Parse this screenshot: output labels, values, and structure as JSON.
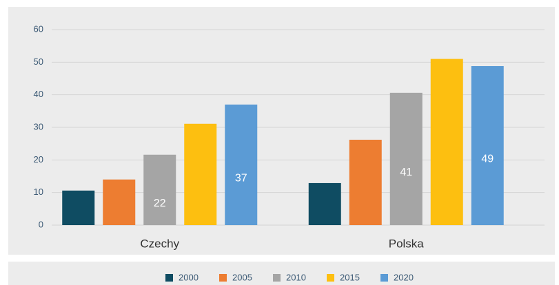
{
  "chart_data": {
    "type": "bar",
    "categories": [
      "Czechy",
      "Polska"
    ],
    "series": [
      {
        "name": "2000",
        "color": "#0f4c62",
        "values": [
          10.6,
          12.9
        ]
      },
      {
        "name": "2005",
        "color": "#ed7d31",
        "values": [
          14,
          26.2
        ]
      },
      {
        "name": "2010",
        "color": "#a5a5a5",
        "values": [
          21.6,
          40.6
        ],
        "value_labels": [
          "22",
          "41"
        ]
      },
      {
        "name": "2015",
        "color": "#fdbf10",
        "values": [
          31.1,
          51
        ]
      },
      {
        "name": "2020",
        "color": "#5b9bd5",
        "values": [
          37,
          48.8
        ],
        "value_labels": [
          "37",
          "49"
        ]
      }
    ],
    "ylim": [
      0,
      60
    ],
    "yticks": [
      0,
      10,
      20,
      30,
      40,
      50,
      60
    ],
    "grid": true,
    "legend": "bottom"
  }
}
